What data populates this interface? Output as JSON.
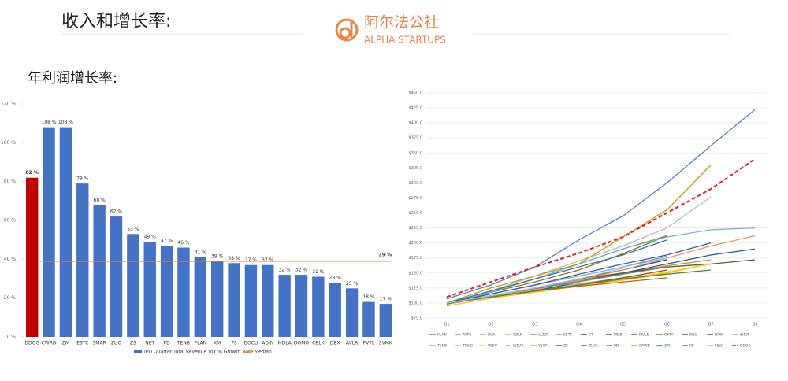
{
  "header": {
    "title": "收入和增长率:",
    "logo_cn": "阿尔法公社",
    "logo_en": "ALPHA STARTUPS",
    "subtitle": "年利润增长率:"
  },
  "chart_data": [
    {
      "type": "bar",
      "categories": [
        "DDOG",
        "CWRD",
        "ZM",
        "ESTC",
        "SMAR",
        "ZUO",
        "ZS",
        "NET",
        "PD",
        "TENB",
        "PLAN",
        "XM",
        "PS",
        "DOCU",
        "ADIN",
        "MDLA",
        "DOMO",
        "CBLK",
        "DBX",
        "AVLR",
        "PVTL",
        "SVMK"
      ],
      "values": [
        82,
        108,
        108,
        79,
        68,
        62,
        53,
        49,
        47,
        46,
        41,
        39,
        38,
        37,
        37,
        32,
        32,
        31,
        28,
        25,
        18,
        17
      ],
      "value_labels": [
        "82 %",
        "108 %",
        "108 %",
        "79 %",
        "68 %",
        "62 %",
        "53 %",
        "49 %",
        "47 %",
        "46 %",
        "41 %",
        "39 %",
        "38 %",
        "37 %",
        "37 %",
        "32 %",
        "32 %",
        "31 %",
        "28 %",
        "25 %",
        "18 %",
        "17 %"
      ],
      "colors": [
        "#c00000",
        "#4472c4",
        "#4472c4",
        "#4472c4",
        "#4472c4",
        "#4472c4",
        "#4472c4",
        "#4472c4",
        "#4472c4",
        "#4472c4",
        "#4472c4",
        "#4472c4",
        "#4472c4",
        "#4472c4",
        "#4472c4",
        "#4472c4",
        "#4472c4",
        "#4472c4",
        "#4472c4",
        "#4472c4",
        "#4472c4",
        "#4472c4"
      ],
      "series_name": "IPO Quarter Total Revenue YoY % Growth Rate",
      "color": "#4472c4",
      "median": {
        "name": "Median",
        "value": 39,
        "label": "39 %",
        "color": "#ed7d31"
      },
      "ylim": [
        0,
        120
      ],
      "yticks": [
        {
          "value": 0,
          "label": "0 %"
        },
        {
          "value": 20,
          "label": "20 %"
        },
        {
          "value": 40,
          "label": "40 %"
        },
        {
          "value": 60,
          "label": "60 %"
        },
        {
          "value": 80,
          "label": "80 %"
        },
        {
          "value": 100,
          "label": "100 %"
        },
        {
          "value": 120,
          "label": "120 %"
        }
      ]
    },
    {
      "type": "line",
      "categories": [
        "Q1",
        "Q2",
        "Q3",
        "Q4",
        "Q5",
        "Q6",
        "Q7",
        "Q8"
      ],
      "ylim": [
        75,
        450
      ],
      "yticks": [
        {
          "value": 75,
          "label": "$75.0"
        },
        {
          "value": 100,
          "label": "$100.0"
        },
        {
          "value": 125,
          "label": "$125.0"
        },
        {
          "value": 150,
          "label": "$150.0"
        },
        {
          "value": 175,
          "label": "$175.0"
        },
        {
          "value": 200,
          "label": "$200.0"
        },
        {
          "value": 225,
          "label": "$225.0"
        },
        {
          "value": 250,
          "label": "$250.0"
        },
        {
          "value": 275,
          "label": "$275.0"
        },
        {
          "value": 300,
          "label": "$300.0"
        },
        {
          "value": 325,
          "label": "$325.0"
        },
        {
          "value": 350,
          "label": "$350.0"
        },
        {
          "value": 375,
          "label": "$375.0"
        },
        {
          "value": 400,
          "label": "$400.0"
        },
        {
          "value": 425,
          "label": "$425.0"
        },
        {
          "value": 450,
          "label": "$450.0"
        }
      ],
      "grid": true,
      "series": [
        {
          "name": "PLAN",
          "color": "#4a86c5",
          "values": [
            107,
            130,
            160,
            205,
            245,
            300,
            362,
            422
          ]
        },
        {
          "name": "APPS",
          "color": "#ed7d31",
          "values": [
            100,
            112,
            125,
            138,
            150,
            162,
            172,
            null
          ]
        },
        {
          "name": "BOX",
          "color": "#a5a5a5",
          "values": [
            98,
            110,
            122,
            132,
            142,
            150,
            null,
            null
          ]
        },
        {
          "name": "CBLK",
          "color": "#ffc000",
          "values": [
            95,
            108,
            118,
            128,
            138,
            150,
            165,
            null
          ]
        },
        {
          "name": "CLDR",
          "color": "#5b9bd5",
          "values": [
            100,
            115,
            130,
            145,
            160,
            178,
            null,
            null
          ]
        },
        {
          "name": "ESTC",
          "color": "#70ad47",
          "values": [
            98,
            120,
            140,
            165,
            190,
            212,
            null,
            null
          ]
        },
        {
          "name": "ET",
          "color": "#264478",
          "values": [
            100,
            112,
            125,
            140,
            155,
            172,
            null,
            null
          ]
        },
        {
          "name": "MDB",
          "color": "#9e480e",
          "values": [
            100,
            110,
            120,
            130,
            142,
            155,
            null,
            null
          ]
        },
        {
          "name": "MULE",
          "color": "#636363",
          "values": [
            100,
            112,
            124,
            136,
            150,
            null,
            null,
            null
          ]
        },
        {
          "name": "OKTA",
          "color": "#997300",
          "values": [
            98,
            118,
            135,
            155,
            182,
            212,
            null,
            null
          ]
        },
        {
          "name": "RNG",
          "color": "#255e91",
          "values": [
            100,
            110,
            120,
            135,
            150,
            165,
            180,
            190
          ]
        },
        {
          "name": "NOW",
          "color": "#43682b",
          "values": [
            100,
            112,
            125,
            140,
            150,
            160,
            165,
            172
          ]
        },
        {
          "name": "SHOP",
          "color": "#7cafdd",
          "values": [
            100,
            118,
            140,
            165,
            190,
            210,
            222,
            225
          ]
        },
        {
          "name": "TENB",
          "color": "#f1975a",
          "values": [
            100,
            110,
            122,
            138,
            155,
            175,
            195,
            212
          ]
        },
        {
          "name": "TWLO",
          "color": "#b7b7b7",
          "values": [
            100,
            120,
            145,
            170,
            195,
            225,
            277,
            null
          ]
        },
        {
          "name": "VEEV",
          "color": "#ffcd33",
          "values": [
            100,
            110,
            120,
            130,
            140,
            152,
            165,
            null
          ]
        },
        {
          "name": "WDAY",
          "color": "#8cb3e0",
          "values": [
            100,
            115,
            130,
            145,
            160,
            175,
            null,
            null
          ]
        },
        {
          "name": "YEXT",
          "color": "#8ad05c",
          "values": [
            100,
            112,
            125,
            135,
            148,
            null,
            null,
            null
          ]
        },
        {
          "name": "ZS",
          "color": "#3a5f9e",
          "values": [
            100,
            115,
            130,
            148,
            165,
            180,
            200,
            null
          ]
        },
        {
          "name": "ZUO",
          "color": "#c55a11",
          "values": [
            100,
            110,
            120,
            128,
            135,
            142,
            null,
            null
          ]
        },
        {
          "name": "PD",
          "color": "#7f7f7f",
          "values": [
            100,
            112,
            124,
            136,
            148,
            160,
            null,
            null
          ]
        },
        {
          "name": "CRWD",
          "color": "#cc9a06",
          "values": [
            100,
            125,
            145,
            165,
            210,
            255,
            330,
            null
          ]
        },
        {
          "name": "ZM",
          "color": "#2e75b6",
          "values": [
            100,
            120,
            140,
            160,
            180,
            205,
            null,
            null
          ]
        },
        {
          "name": "PS",
          "color": "#548235",
          "values": [
            100,
            110,
            120,
            130,
            140,
            148,
            155,
            null
          ]
        },
        {
          "name": "FSLY",
          "color": "#9dc3e6",
          "values": [
            100,
            112,
            125,
            140,
            158,
            null,
            null,
            null
          ]
        },
        {
          "name": "DDOG",
          "color": "#e02020",
          "dashed": true,
          "values": [
            110,
            135,
            160,
            183,
            210,
            250,
            290,
            340
          ]
        }
      ]
    }
  ]
}
